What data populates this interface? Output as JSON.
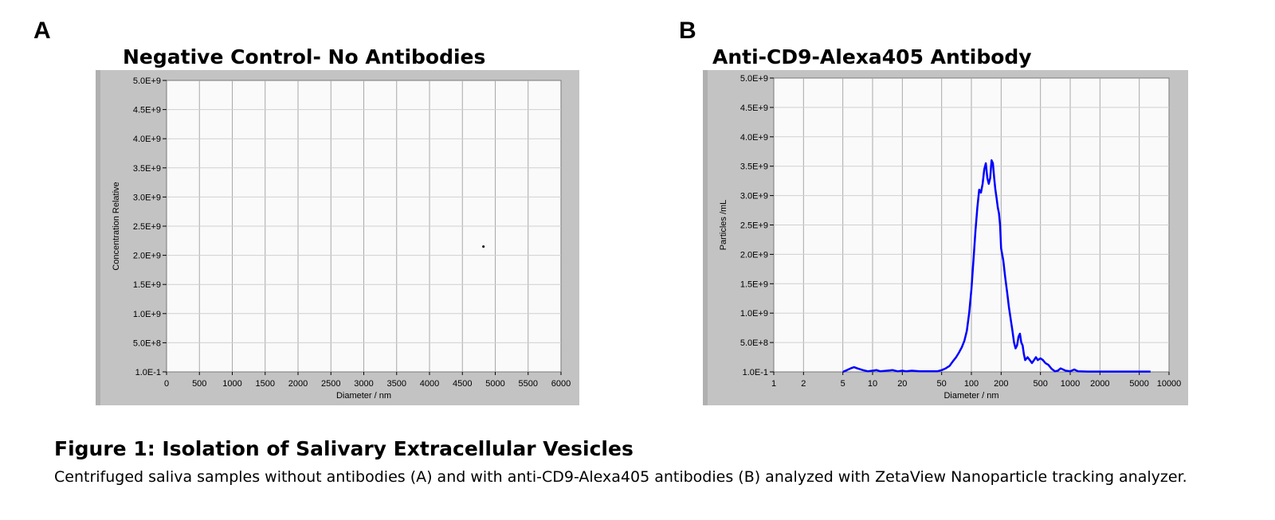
{
  "figure": {
    "panel_a_letter": "A",
    "panel_b_letter": "B",
    "caption_title": "Figure 1: Isolation of Salivary Extracellular Vesicles",
    "caption_text": "Centrifuged saliva samples without antibodies (A) and with anti-CD9-Alexa405 antibodies (B) analyzed with ZetaView Nanoparticle tracking analyzer."
  },
  "colors": {
    "frame": "#c3c3c3",
    "plot_bg": "#fafafa",
    "grid": "#a8a8a8",
    "series": "#0000ff"
  },
  "chart_data": [
    {
      "type": "scatter",
      "title": "Negative Control- No Antibodies",
      "xlabel": "Diameter / nm",
      "ylabel": "Concentration Relative",
      "xscale": "linear",
      "xlim": [
        0,
        6000
      ],
      "ylim": [
        0.1,
        5000000000
      ],
      "xticks": [
        0,
        500,
        1000,
        1500,
        2000,
        2500,
        3000,
        3500,
        4000,
        4500,
        5000,
        5500,
        6000
      ],
      "xtick_labels": [
        "0",
        "500",
        "1000",
        "1500",
        "2000",
        "2500",
        "3000",
        "3500",
        "4000",
        "4500",
        "5000",
        "5500",
        "6000"
      ],
      "yticks": [
        0.1,
        500000000,
        1000000000,
        1500000000,
        2000000000,
        2500000000,
        3000000000,
        3500000000,
        4000000000,
        4500000000,
        5000000000
      ],
      "ytick_labels": [
        "1.0E-1",
        "5.0E+8",
        "1.0E+9",
        "1.5E+9",
        "2.0E+9",
        "2.5E+9",
        "3.0E+9",
        "3.5E+9",
        "4.0E+9",
        "4.5E+9",
        "5.0E+9"
      ],
      "grid": true,
      "series": [
        {
          "points": [
            {
              "x": 4820,
              "y": 2150000000
            }
          ]
        }
      ]
    },
    {
      "type": "line",
      "title": "Anti-CD9-Alexa405 Antibody",
      "xlabel": "Diameter / nm",
      "ylabel": "Particles /mL",
      "xscale": "log",
      "xlim": [
        1,
        10000
      ],
      "ylim": [
        0.1,
        5000000000
      ],
      "xticks": [
        1,
        2,
        5,
        10,
        20,
        50,
        100,
        200,
        500,
        1000,
        2000,
        5000,
        10000
      ],
      "xtick_labels": [
        "1",
        "2",
        "5",
        "10",
        "20",
        "50",
        "100",
        "200",
        "500",
        "1000",
        "2000",
        "5000",
        "10000"
      ],
      "yticks": [
        0.1,
        500000000,
        1000000000,
        1500000000,
        2000000000,
        2500000000,
        3000000000,
        3500000000,
        4000000000,
        4500000000,
        5000000000
      ],
      "ytick_labels": [
        "1.0E-1",
        "5.0E+8",
        "1.0E+9",
        "1.5E+9",
        "2.0E+9",
        "2.5E+9",
        "3.0E+9",
        "3.5E+9",
        "4.0E+9",
        "4.5E+9",
        "5.0E+9"
      ],
      "grid": true,
      "series": [
        {
          "x": [
            5,
            5.5,
            6,
            6.5,
            7,
            8,
            9,
            10,
            11,
            12,
            14,
            16,
            18,
            20,
            22,
            25,
            30,
            35,
            40,
            45,
            50,
            55,
            60,
            65,
            70,
            75,
            80,
            85,
            90,
            95,
            100,
            105,
            110,
            115,
            120,
            125,
            130,
            135,
            140,
            145,
            150,
            155,
            160,
            165,
            170,
            175,
            180,
            185,
            190,
            195,
            200,
            210,
            220,
            230,
            240,
            250,
            260,
            270,
            280,
            290,
            300,
            310,
            320,
            330,
            340,
            350,
            370,
            390,
            410,
            430,
            450,
            470,
            500,
            530,
            560,
            600,
            650,
            700,
            750,
            800,
            900,
            1000,
            1100,
            1200,
            1500,
            2000,
            3000,
            4000,
            5000,
            6000,
            6500
          ],
          "y": [
            0,
            30000000,
            60000000,
            80000000,
            60000000,
            30000000,
            10000000,
            20000000,
            30000000,
            10000000,
            20000000,
            30000000,
            10000000,
            20000000,
            10000000,
            20000000,
            10000000,
            10000000,
            10000000,
            10000000,
            30000000,
            60000000,
            100000000,
            180000000,
            250000000,
            330000000,
            420000000,
            530000000,
            700000000,
            1000000000,
            1400000000,
            1900000000,
            2400000000,
            2800000000,
            3100000000,
            3050000000,
            3200000000,
            3450000000,
            3550000000,
            3300000000,
            3200000000,
            3300000000,
            3600000000,
            3550000000,
            3300000000,
            3100000000,
            2950000000,
            2800000000,
            2700000000,
            2500000000,
            2100000000,
            1900000000,
            1600000000,
            1350000000,
            1100000000,
            900000000,
            700000000,
            500000000,
            400000000,
            450000000,
            600000000,
            650000000,
            500000000,
            450000000,
            300000000,
            200000000,
            250000000,
            200000000,
            150000000,
            200000000,
            250000000,
            200000000,
            230000000,
            200000000,
            150000000,
            120000000,
            50000000,
            10000000,
            20000000,
            60000000,
            20000000,
            10000000,
            40000000,
            10000000,
            5000000,
            5000000,
            5000000,
            5000000,
            5000000,
            5000000,
            5000000
          ]
        }
      ]
    }
  ]
}
